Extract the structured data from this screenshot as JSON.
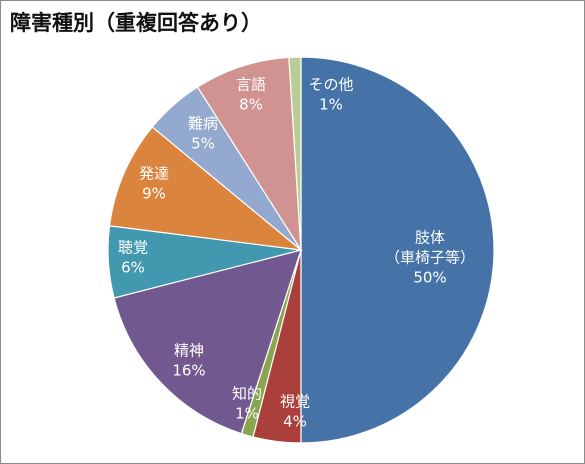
{
  "title": "障害種別（重複回答あり）",
  "chart_data": {
    "type": "pie",
    "title": "障害種別（重複回答あり）",
    "legend": "none",
    "slices": [
      {
        "key": "body",
        "lines": [
          "肢体",
          "（車椅子等）"
        ],
        "pct_label": "50%",
        "value": 50,
        "color": "#4572a7",
        "text_color": "#ffffff"
      },
      {
        "key": "vision",
        "lines": [
          "視覚"
        ],
        "pct_label": "4%",
        "value": 4,
        "color": "#aa3f3b",
        "text_color": "#ffffff"
      },
      {
        "key": "intellect",
        "lines": [
          "知的"
        ],
        "pct_label": "1%",
        "value": 1,
        "color": "#89a54e",
        "text_color": "#ffffff"
      },
      {
        "key": "mental",
        "lines": [
          "精神"
        ],
        "pct_label": "16%",
        "value": 16,
        "color": "#71588f",
        "text_color": "#ffffff"
      },
      {
        "key": "hearing",
        "lines": [
          "聴覚"
        ],
        "pct_label": "6%",
        "value": 6,
        "color": "#4198af",
        "text_color": "#ffffff"
      },
      {
        "key": "develop",
        "lines": [
          "発達"
        ],
        "pct_label": "9%",
        "value": 9,
        "color": "#db843d",
        "text_color": "#ffffff"
      },
      {
        "key": "intractable",
        "lines": [
          "難病"
        ],
        "pct_label": "5%",
        "value": 5,
        "color": "#93a9cf",
        "text_color": "#ffffff"
      },
      {
        "key": "speech",
        "lines": [
          "言語"
        ],
        "pct_label": "8%",
        "value": 8,
        "color": "#d19392",
        "text_color": "#ffffff"
      },
      {
        "key": "other",
        "lines": [
          "その他"
        ],
        "pct_label": "1%",
        "value": 1,
        "color": "#b9cd96",
        "text_color": "#ffffff"
      }
    ]
  }
}
